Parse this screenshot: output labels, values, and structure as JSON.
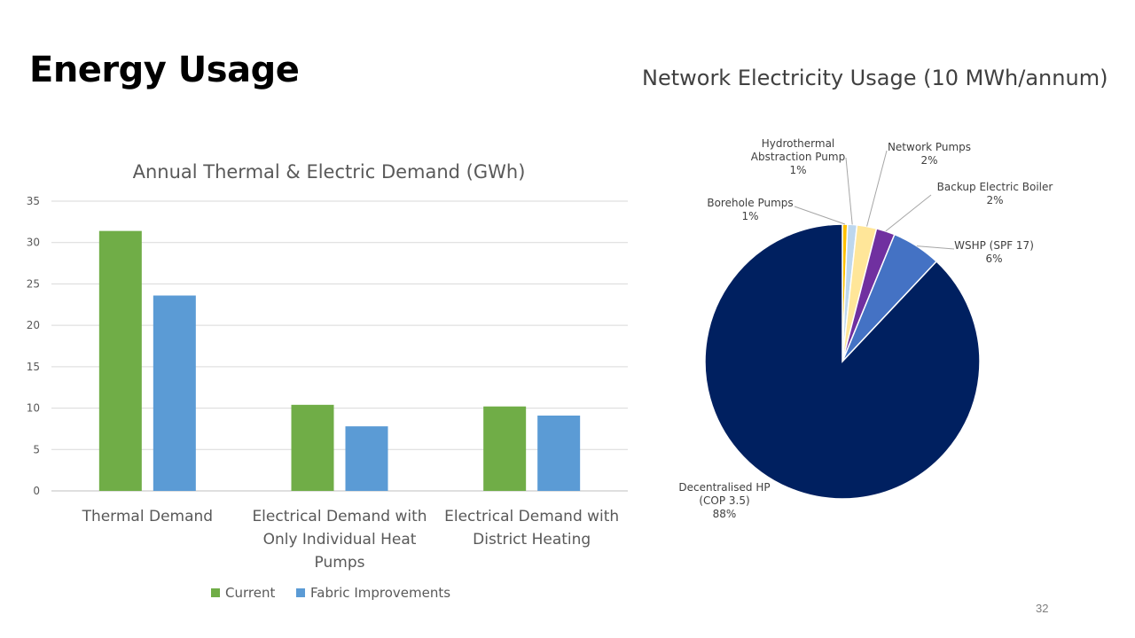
{
  "slide": {
    "title": "Energy Usage",
    "page_number": "32"
  },
  "chart_data": [
    {
      "type": "bar",
      "title": "Annual Thermal & Electric Demand (GWh)",
      "categories": [
        "Thermal Demand",
        "Electrical Demand with Only Individual Heat Pumps",
        "Electrical Demand with District Heating"
      ],
      "category_lines": [
        [
          "Thermal Demand"
        ],
        [
          "Electrical Demand with",
          "Only Individual Heat",
          "Pumps"
        ],
        [
          "Electrical Demand with",
          "District Heating"
        ]
      ],
      "series": [
        {
          "name": "Current",
          "values": [
            31.4,
            10.4,
            10.2
          ],
          "color": "#70AD47"
        },
        {
          "name": "Fabric Improvements",
          "values": [
            23.6,
            7.8,
            9.1
          ],
          "color": "#5B9BD5"
        }
      ],
      "ylim": [
        0,
        35
      ],
      "yticks": [
        0,
        5,
        10,
        15,
        20,
        25,
        30,
        35
      ],
      "grid": true,
      "legend": "bottom"
    },
    {
      "type": "pie",
      "title": "Network Electricity Usage (10 MWh/annum)",
      "slices": [
        {
          "label": "Borehole Pumps",
          "percent": "1%",
          "value": 0.6,
          "color": "#FFC000"
        },
        {
          "label": "Hydrothermal Abstraction Pump",
          "percent": "1%",
          "value": 1.1,
          "color": "#BDD7EE"
        },
        {
          "label": "Network Pumps",
          "percent": "2%",
          "value": 2.3,
          "color": "#FFE699"
        },
        {
          "label": "Backup Electric Boiler",
          "percent": "2%",
          "value": 2.2,
          "color": "#7030A0"
        },
        {
          "label": "WSHP (SPF 17)",
          "percent": "6%",
          "value": 5.8,
          "color": "#4472C4"
        },
        {
          "label": "Decentralised HP (COP 3.5)",
          "percent": "88%",
          "value": 88.0,
          "color": "#002060"
        }
      ],
      "slice_label_lines": [
        [
          "Borehole Pumps",
          "1%"
        ],
        [
          "Hydrothermal",
          "Abstraction Pump",
          "1%"
        ],
        [
          "Network Pumps",
          "2%"
        ],
        [
          "Backup Electric Boiler",
          "2%"
        ],
        [
          "WSHP (SPF 17)",
          "6%"
        ],
        [
          "Decentralised HP",
          "(COP 3.5)",
          "88%"
        ]
      ]
    }
  ]
}
